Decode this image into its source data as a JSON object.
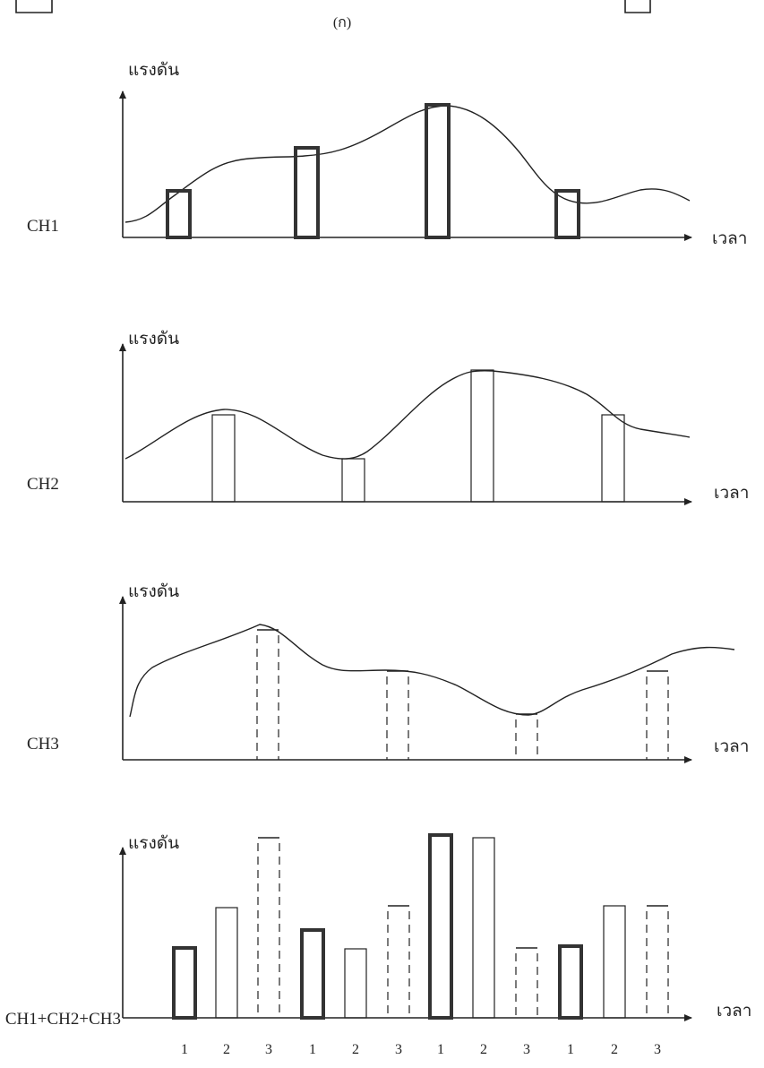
{
  "caption": "(ก)",
  "panels": [
    {
      "y_label": "แรงดัน",
      "x_label": "เวลา",
      "channel": "CH1"
    },
    {
      "y_label": "แรงดัน",
      "x_label": "เวลา",
      "channel": "CH2"
    },
    {
      "y_label": "แรงดัน",
      "x_label": "เวลา",
      "channel": "CH3"
    },
    {
      "y_label": "แรงดัน",
      "x_label": "เวลา",
      "channel": "CH1+CH2+CH3"
    }
  ],
  "bottom_ticks": [
    "1",
    "2",
    "3",
    "1",
    "2",
    "3",
    "1",
    "2",
    "3",
    "1",
    "2",
    "3"
  ]
}
